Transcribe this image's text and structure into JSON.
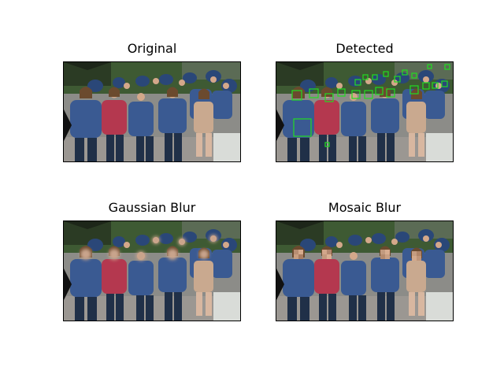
{
  "panels": [
    {
      "title": "Original"
    },
    {
      "title": "Detected"
    },
    {
      "title": "Gaussian Blur"
    },
    {
      "title": "Mosaic Blur"
    }
  ],
  "colors": {
    "detection_box": "#22dd22",
    "background": "#ffffff",
    "axes_border": "#000000"
  },
  "image_description_icon": "crowd-photo"
}
